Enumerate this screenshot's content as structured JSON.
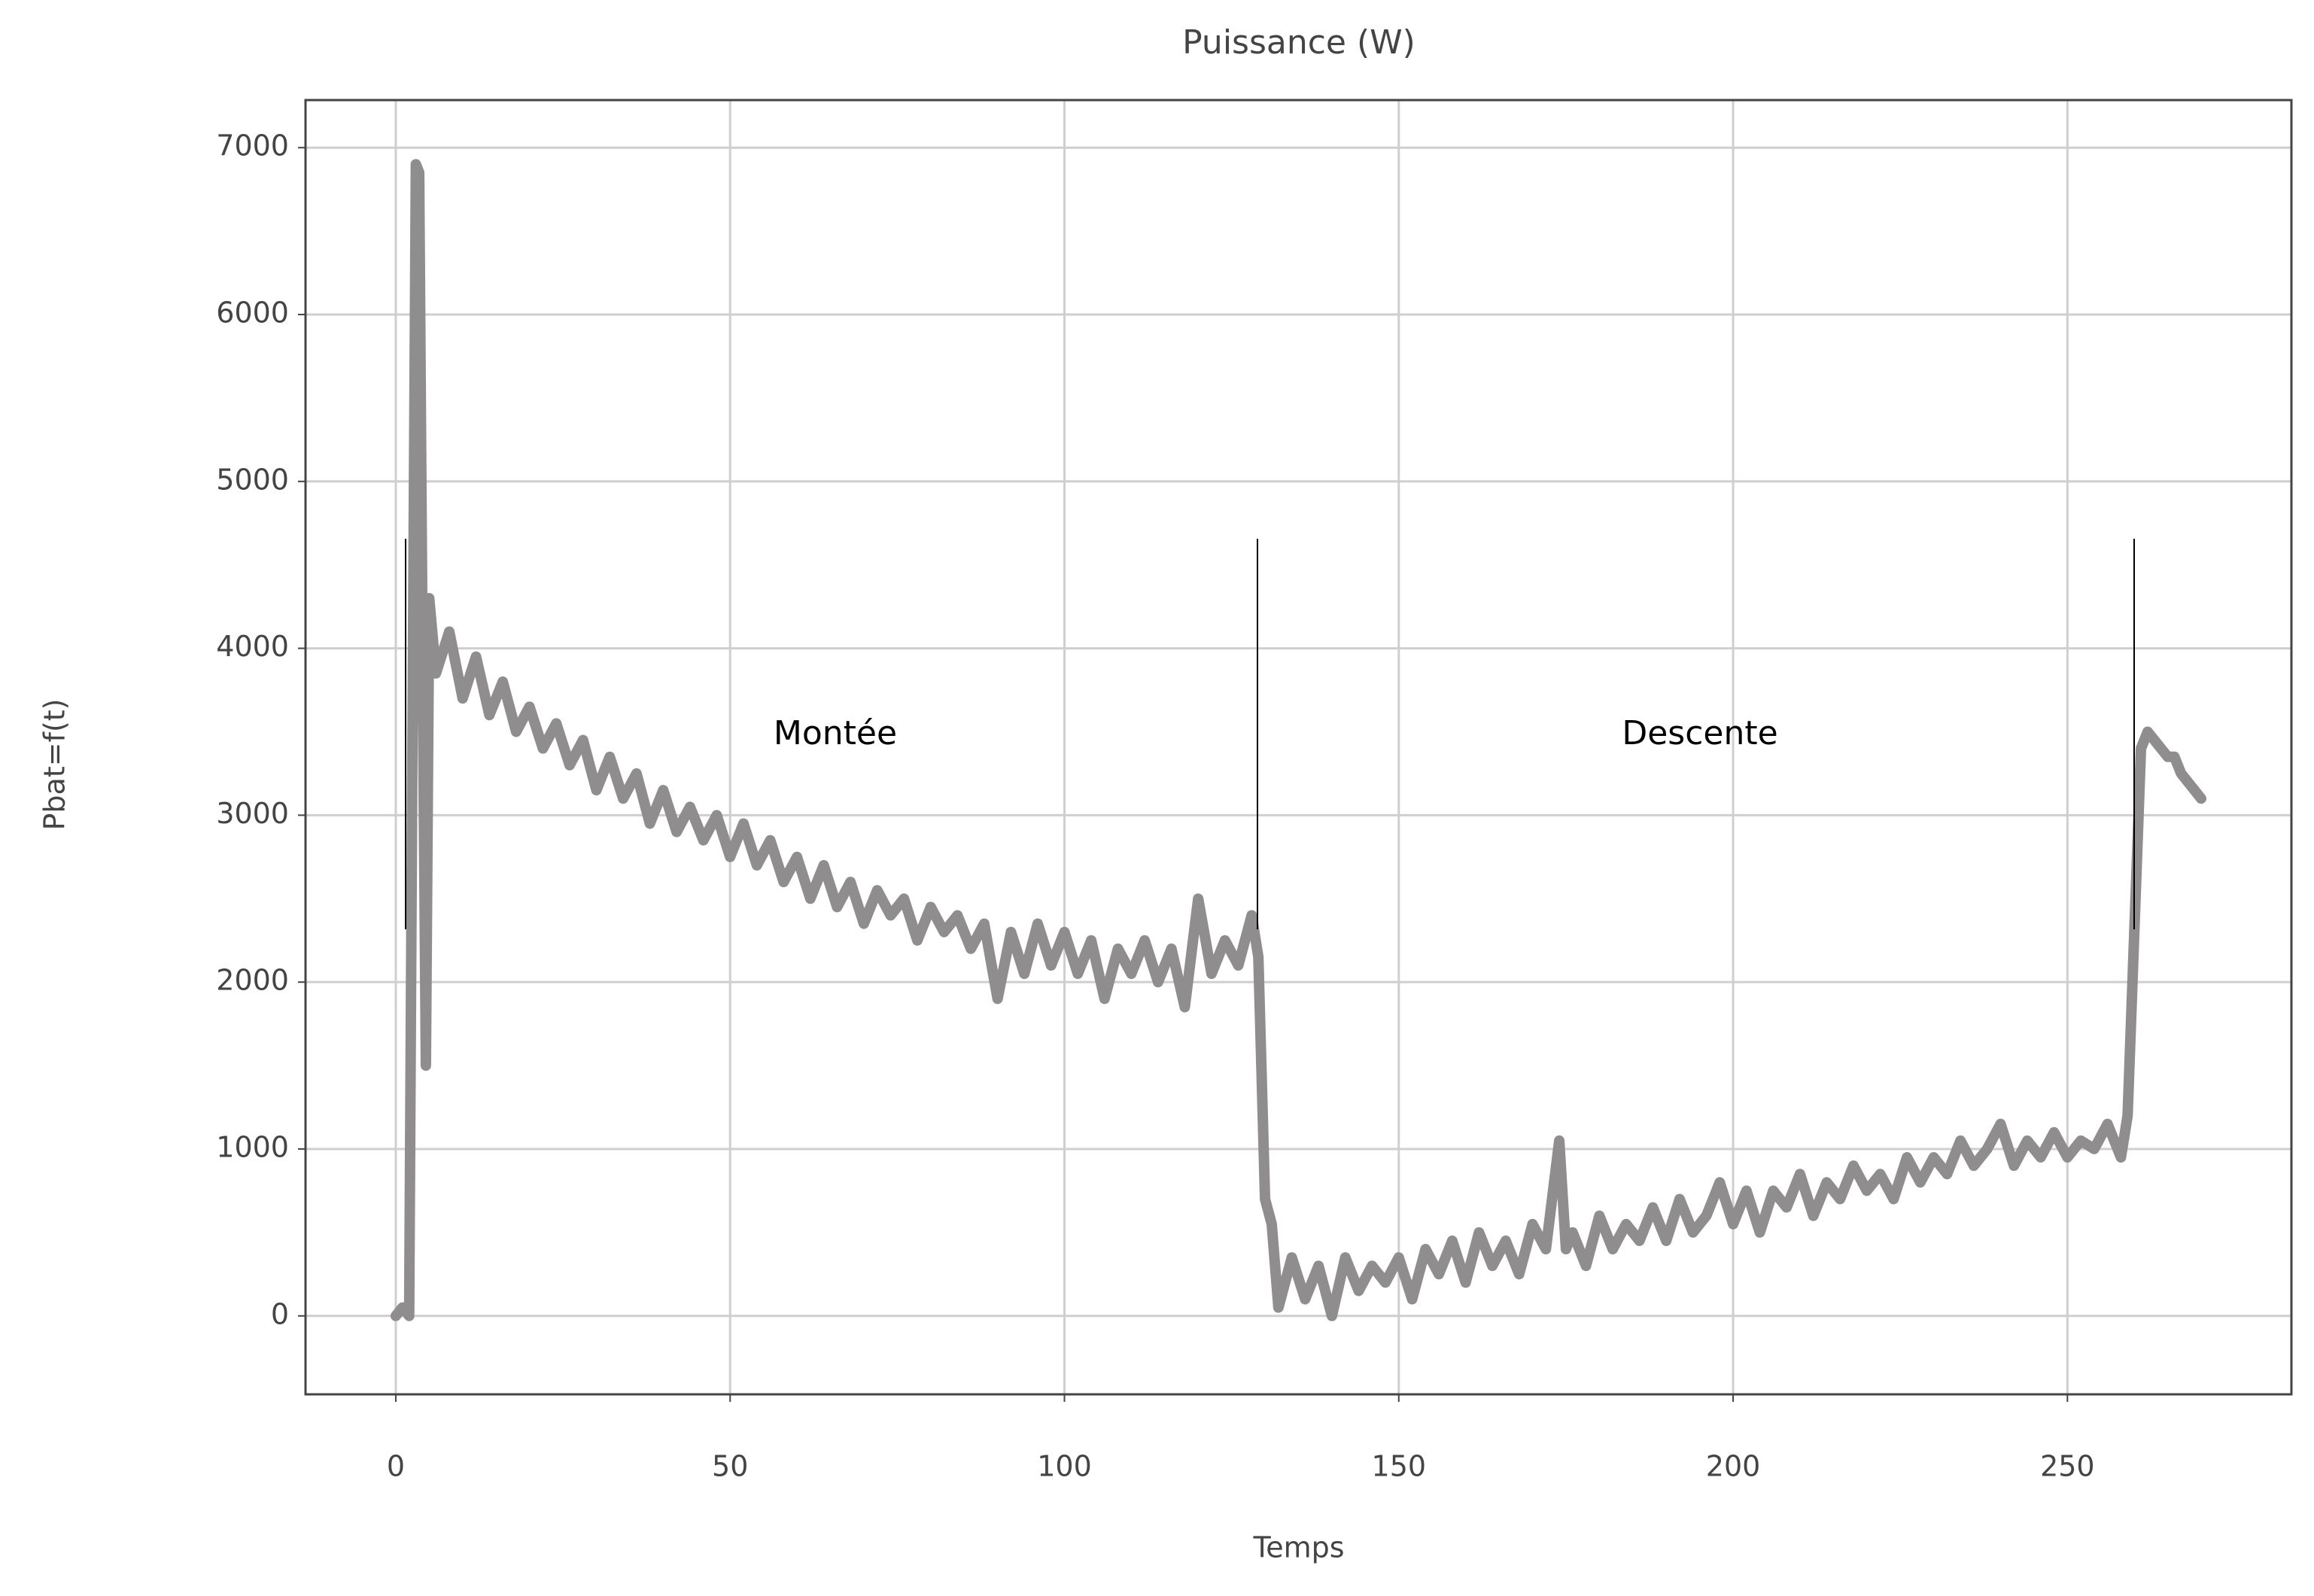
{
  "chart_data": {
    "type": "line",
    "title": "Puissance (W)",
    "x_label": "Temps",
    "y_label": "Pbat=f(t)",
    "annotations": [
      "Montée",
      "Descente"
    ],
    "x": [
      0,
      1,
      2,
      2.5,
      3,
      3.5,
      4,
      4.5,
      5,
      6,
      8,
      10,
      12,
      14,
      16,
      18,
      20,
      22,
      24,
      26,
      28,
      30,
      32,
      34,
      36,
      38,
      40,
      42,
      44,
      46,
      48,
      50,
      52,
      54,
      56,
      58,
      60,
      62,
      64,
      66,
      68,
      70,
      72,
      74,
      76,
      78,
      80,
      82,
      84,
      86,
      88,
      90,
      92,
      94,
      96,
      98,
      100,
      102,
      104,
      106,
      108,
      110,
      112,
      114,
      116,
      118,
      120,
      122,
      124,
      126,
      128,
      129,
      130,
      131,
      132,
      134,
      136,
      138,
      140,
      142,
      144,
      146,
      148,
      150,
      152,
      154,
      156,
      158,
      160,
      162,
      164,
      166,
      168,
      170,
      172,
      174,
      175,
      176,
      178,
      180,
      182,
      184,
      186,
      188,
      190,
      192,
      194,
      196,
      198,
      200,
      202,
      204,
      206,
      208,
      210,
      212,
      214,
      216,
      218,
      220,
      222,
      224,
      226,
      228,
      230,
      232,
      234,
      236,
      238,
      240,
      242,
      244,
      246,
      248,
      250,
      252,
      254,
      256,
      258,
      259,
      260,
      261,
      262,
      263,
      264,
      265,
      266,
      267,
      268,
      269,
      270
    ],
    "series": [
      {
        "name": "Pbat",
        "color": "#8f8d8e",
        "values": [
          0,
          50,
          0,
          3500,
          6900,
          6850,
          4000,
          1500,
          4300,
          3850,
          4100,
          3700,
          3950,
          3600,
          3800,
          3500,
          3650,
          3400,
          3550,
          3300,
          3450,
          3150,
          3350,
          3100,
          3250,
          2950,
          3150,
          2900,
          3050,
          2850,
          3000,
          2750,
          2950,
          2700,
          2850,
          2600,
          2750,
          2500,
          2700,
          2450,
          2600,
          2350,
          2550,
          2400,
          2500,
          2250,
          2450,
          2300,
          2400,
          2200,
          2350,
          1900,
          2300,
          2050,
          2350,
          2100,
          2300,
          2050,
          2250,
          1900,
          2200,
          2050,
          2250,
          2000,
          2200,
          1850,
          2500,
          2050,
          2250,
          2100,
          2400,
          2150,
          700,
          550,
          50,
          350,
          100,
          300,
          0,
          350,
          150,
          300,
          200,
          350,
          100,
          400,
          250,
          450,
          200,
          500,
          300,
          450,
          250,
          550,
          400,
          1050,
          400,
          500,
          300,
          600,
          400,
          550,
          450,
          650,
          450,
          700,
          500,
          600,
          800,
          550,
          750,
          500,
          750,
          650,
          850,
          600,
          800,
          700,
          900,
          750,
          850,
          700,
          950,
          800,
          950,
          850,
          1050,
          900,
          1000,
          1150,
          900,
          1050,
          950,
          1100,
          950,
          1050,
          1000,
          1150,
          950,
          1200,
          2300,
          3400,
          3500,
          3450,
          3400,
          3350,
          3350,
          3250,
          3200,
          3150,
          3100
        ]
      }
    ],
    "xlim": [
      -13.5,
      283.5
    ],
    "ylim": [
      -470,
      7285
    ],
    "xticks": [
      0,
      50,
      100,
      150,
      200,
      250
    ],
    "yticks": [
      0,
      1000,
      2000,
      3000,
      4000,
      5000,
      6000,
      7000
    ],
    "grid": true
  }
}
